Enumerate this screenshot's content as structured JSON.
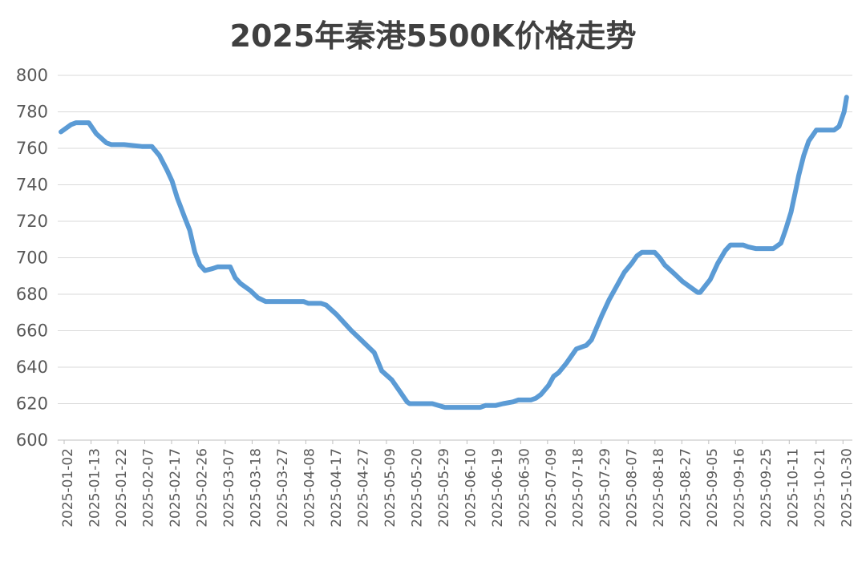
{
  "chart_data": {
    "type": "line",
    "title": "2025年秦港5500K价格走势",
    "xlabel": "",
    "ylabel": "",
    "ylim": [
      600,
      800
    ],
    "yticks": [
      600,
      620,
      640,
      660,
      680,
      700,
      720,
      740,
      760,
      780,
      800
    ],
    "x_tick_labels": [
      "2025-01-02",
      "2025-01-13",
      "2025-01-22",
      "2025-02-07",
      "2025-02-17",
      "2025-02-26",
      "2025-03-07",
      "2025-03-18",
      "2025-03-27",
      "2025-04-08",
      "2025-04-17",
      "2025-04-27",
      "2025-05-09",
      "2025-05-20",
      "2025-05-29",
      "2025-06-10",
      "2025-06-19",
      "2025-06-30",
      "2025-07-09",
      "2025-07-18",
      "2025-07-29",
      "2025-08-07",
      "2025-08-18",
      "2025-08-27",
      "2025-09-05",
      "2025-09-16",
      "2025-09-25",
      "2025-10-11",
      "2025-10-21",
      "2025-10-30"
    ],
    "grid": true,
    "legend": "none",
    "line_color": "#5b9bd5",
    "series": [
      {
        "points": [
          [
            "2025-01-02",
            769
          ],
          [
            "2025-01-06",
            773
          ],
          [
            "2025-01-08",
            774
          ],
          [
            "2025-01-10",
            774
          ],
          [
            "2025-01-13",
            774
          ],
          [
            "2025-01-16",
            768
          ],
          [
            "2025-01-20",
            763
          ],
          [
            "2025-01-22",
            762
          ],
          [
            "2025-01-24",
            762
          ],
          [
            "2025-01-27",
            762
          ],
          [
            "2025-02-03",
            761
          ],
          [
            "2025-02-07",
            761
          ],
          [
            "2025-02-10",
            756
          ],
          [
            "2025-02-13",
            748
          ],
          [
            "2025-02-15",
            742
          ],
          [
            "2025-02-17",
            733
          ],
          [
            "2025-02-20",
            722
          ],
          [
            "2025-02-22",
            715
          ],
          [
            "2025-02-24",
            703
          ],
          [
            "2025-02-26",
            696
          ],
          [
            "2025-02-28",
            693
          ],
          [
            "2025-03-03",
            694
          ],
          [
            "2025-03-05",
            695
          ],
          [
            "2025-03-07",
            695
          ],
          [
            "2025-03-10",
            695
          ],
          [
            "2025-03-12",
            689
          ],
          [
            "2025-03-14",
            686
          ],
          [
            "2025-03-18",
            682
          ],
          [
            "2025-03-21",
            678
          ],
          [
            "2025-03-24",
            676
          ],
          [
            "2025-03-27",
            676
          ],
          [
            "2025-03-31",
            676
          ],
          [
            "2025-04-03",
            676
          ],
          [
            "2025-04-08",
            676
          ],
          [
            "2025-04-10",
            675
          ],
          [
            "2025-04-15",
            675
          ],
          [
            "2025-04-17",
            674
          ],
          [
            "2025-04-21",
            669
          ],
          [
            "2025-04-25",
            663
          ],
          [
            "2025-04-27",
            660
          ],
          [
            "2025-04-30",
            656
          ],
          [
            "2025-05-06",
            648
          ],
          [
            "2025-05-09",
            638
          ],
          [
            "2025-05-13",
            633
          ],
          [
            "2025-05-16",
            627
          ],
          [
            "2025-05-19",
            621
          ],
          [
            "2025-05-20",
            620
          ],
          [
            "2025-05-23",
            620
          ],
          [
            "2025-05-26",
            620
          ],
          [
            "2025-05-29",
            620
          ],
          [
            "2025-06-03",
            618
          ],
          [
            "2025-06-06",
            618
          ],
          [
            "2025-06-10",
            618
          ],
          [
            "2025-06-13",
            618
          ],
          [
            "2025-06-17",
            618
          ],
          [
            "2025-06-19",
            619
          ],
          [
            "2025-06-23",
            619
          ],
          [
            "2025-06-26",
            620
          ],
          [
            "2025-06-30",
            621
          ],
          [
            "2025-07-02",
            622
          ],
          [
            "2025-07-04",
            622
          ],
          [
            "2025-07-07",
            622
          ],
          [
            "2025-07-09",
            623
          ],
          [
            "2025-07-11",
            625
          ],
          [
            "2025-07-14",
            630
          ],
          [
            "2025-07-16",
            635
          ],
          [
            "2025-07-18",
            637
          ],
          [
            "2025-07-21",
            642
          ],
          [
            "2025-07-23",
            646
          ],
          [
            "2025-07-25",
            650
          ],
          [
            "2025-07-29",
            652
          ],
          [
            "2025-07-31",
            655
          ],
          [
            "2025-08-04",
            668
          ],
          [
            "2025-08-07",
            677
          ],
          [
            "2025-08-11",
            687
          ],
          [
            "2025-08-13",
            692
          ],
          [
            "2025-08-16",
            697
          ],
          [
            "2025-08-18",
            701
          ],
          [
            "2025-08-20",
            703
          ],
          [
            "2025-08-22",
            703
          ],
          [
            "2025-08-25",
            703
          ],
          [
            "2025-08-27",
            700
          ],
          [
            "2025-08-29",
            696
          ],
          [
            "2025-09-02",
            691
          ],
          [
            "2025-09-05",
            687
          ],
          [
            "2025-09-09",
            683
          ],
          [
            "2025-09-11",
            681
          ],
          [
            "2025-09-12",
            681
          ],
          [
            "2025-09-16",
            688
          ],
          [
            "2025-09-19",
            697
          ],
          [
            "2025-09-22",
            704
          ],
          [
            "2025-09-24",
            707
          ],
          [
            "2025-09-25",
            707
          ],
          [
            "2025-09-29",
            707
          ],
          [
            "2025-10-01",
            706
          ],
          [
            "2025-10-04",
            705
          ],
          [
            "2025-10-08",
            705
          ],
          [
            "2025-10-11",
            705
          ],
          [
            "2025-10-14",
            708
          ],
          [
            "2025-10-16",
            716
          ],
          [
            "2025-10-18",
            725
          ],
          [
            "2025-10-20",
            738
          ],
          [
            "2025-10-21",
            745
          ],
          [
            "2025-10-23",
            756
          ],
          [
            "2025-10-25",
            764
          ],
          [
            "2025-10-28",
            770
          ],
          [
            "2025-10-30",
            770
          ],
          [
            "2025-11-01",
            770
          ],
          [
            "2025-11-04",
            770
          ],
          [
            "2025-11-06",
            772
          ],
          [
            "2025-11-08",
            780
          ],
          [
            "2025-11-09",
            788
          ]
        ]
      }
    ]
  }
}
